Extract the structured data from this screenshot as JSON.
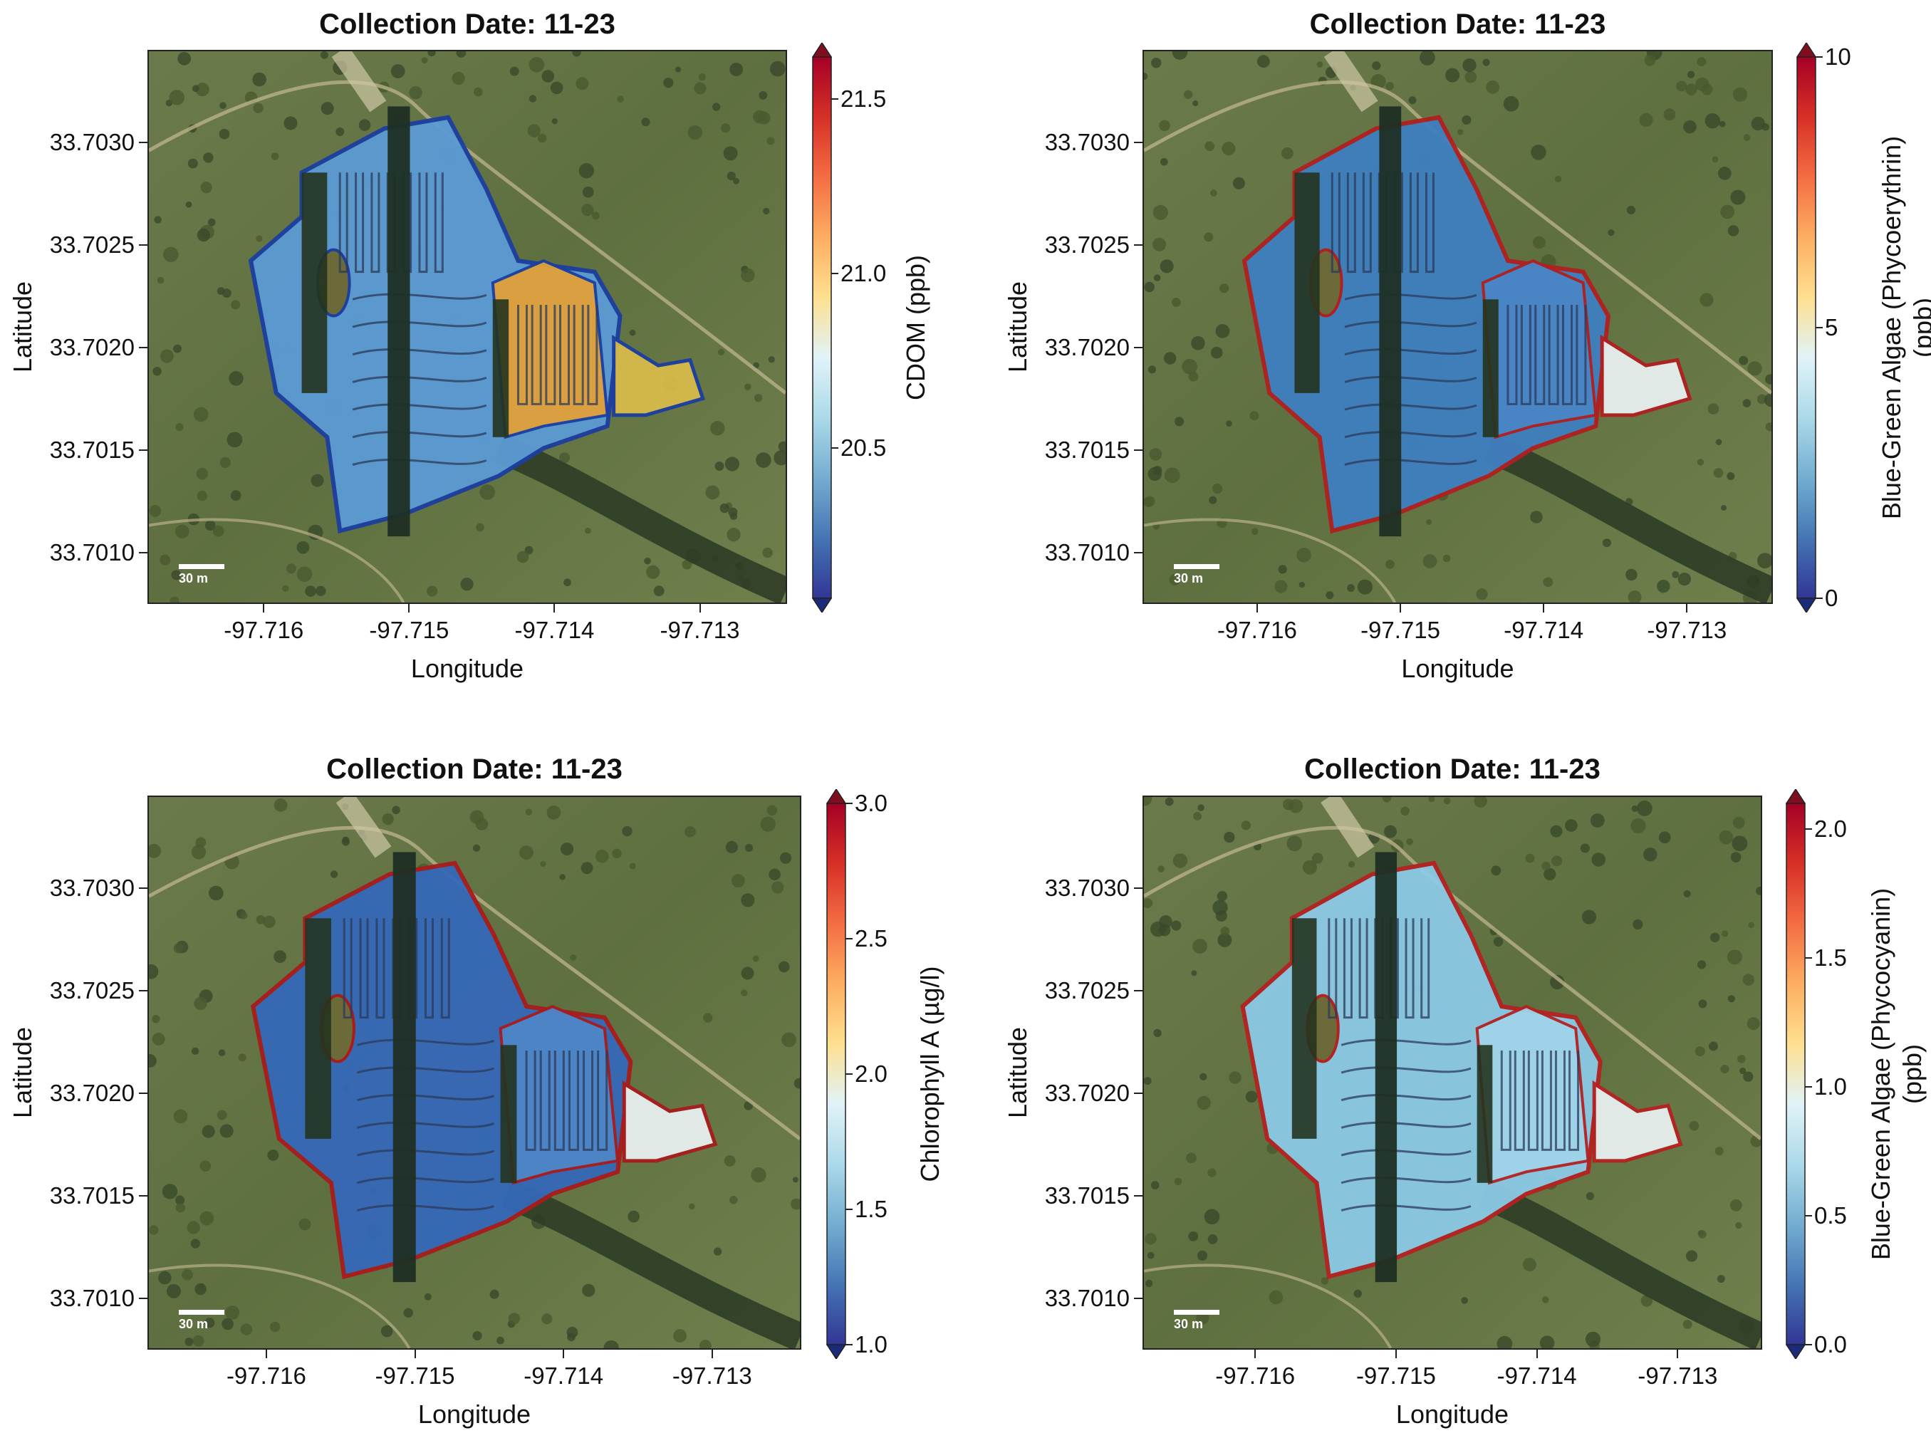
{
  "chart_data": [
    {
      "type": "heatmap",
      "title": "Collection Date: 11-23",
      "xlabel": "Longitude",
      "ylabel": "Latitude",
      "xticks": [
        "-97.716",
        "-97.715",
        "-97.714",
        "-97.713"
      ],
      "yticks": [
        "33.7030",
        "33.7025",
        "33.7020",
        "33.7015",
        "33.7010"
      ],
      "xlim": [
        -97.7168,
        -97.7124
      ],
      "ylim": [
        33.70075,
        33.70345
      ],
      "colorbar": {
        "label": "CDOM (ppb)",
        "ticks": [
          "21.5",
          "21.0",
          "20.5"
        ],
        "range": [
          20.07,
          21.62
        ],
        "colormap": "RdYlBu_r"
      },
      "scalebar_label": "30 m",
      "dominant_value_note": "low"
    },
    {
      "type": "heatmap",
      "title": "Collection Date: 11-23",
      "xlabel": "Longitude",
      "ylabel": "Latitude",
      "xticks": [
        "-97.716",
        "-97.715",
        "-97.714",
        "-97.713"
      ],
      "yticks": [
        "33.7030",
        "33.7025",
        "33.7020",
        "33.7015",
        "33.7010"
      ],
      "xlim": [
        -97.7168,
        -97.7124
      ],
      "ylim": [
        33.70075,
        33.70345
      ],
      "colorbar": {
        "label": "Blue-Green Algae (Phycoerythrin) (ppb)",
        "ticks": [
          "10",
          "5",
          "0"
        ],
        "range": [
          0,
          10
        ],
        "colormap": "RdYlBu_r"
      },
      "scalebar_label": "30 m"
    },
    {
      "type": "heatmap",
      "title": "Collection Date: 11-23",
      "xlabel": "Longitude",
      "ylabel": "Latitude",
      "xticks": [
        "-97.716",
        "-97.715",
        "-97.714",
        "-97.713"
      ],
      "yticks": [
        "33.7030",
        "33.7025",
        "33.7020",
        "33.7015",
        "33.7010"
      ],
      "xlim": [
        -97.7168,
        -97.7124
      ],
      "ylim": [
        33.70075,
        33.70345
      ],
      "colorbar": {
        "label": "Chlorophyll A (µg/l)",
        "ticks": [
          "3.0",
          "2.5",
          "2.0",
          "1.5",
          "1.0"
        ],
        "range": [
          1.0,
          3.0
        ],
        "colormap": "RdYlBu_r"
      },
      "scalebar_label": "30 m"
    },
    {
      "type": "heatmap",
      "title": "Collection Date: 11-23",
      "xlabel": "Longitude",
      "ylabel": "Latitude",
      "xticks": [
        "-97.716",
        "-97.715",
        "-97.714",
        "-97.713"
      ],
      "yticks": [
        "33.7030",
        "33.7025",
        "33.7020",
        "33.7015",
        "33.7010"
      ],
      "xlim": [
        -97.7168,
        -97.7124
      ],
      "ylim": [
        33.70075,
        33.70345
      ],
      "colorbar": {
        "label": "Blue-Green Algae (Phycocyanin) (ppb)",
        "ticks": [
          "2.0",
          "1.5",
          "1.0",
          "0.5",
          "0.0"
        ],
        "range": [
          0.0,
          2.1
        ],
        "colormap": "RdYlBu_r"
      },
      "scalebar_label": "30 m"
    }
  ]
}
